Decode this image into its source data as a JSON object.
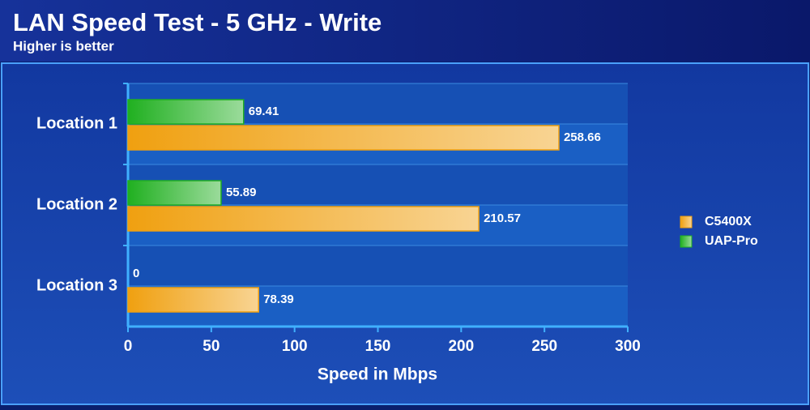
{
  "chart_data": {
    "type": "hbar",
    "title": "LAN Speed Test - 5 GHz - Write",
    "subtitle": "Higher is better",
    "x_label": "Speed in Mbps",
    "categories": [
      "Location 1",
      "Location 2",
      "Location 3"
    ],
    "series": [
      {
        "name": "C5400X",
        "color": "#f0a010",
        "values": [
          258.66,
          210.57,
          78.39
        ]
      },
      {
        "name": "UAP-Pro",
        "color": "#20b020",
        "values": [
          69.41,
          55.89,
          0
        ]
      }
    ],
    "xlim": [
      0,
      300
    ],
    "xticks": [
      0,
      50,
      100,
      150,
      200,
      250,
      300
    ],
    "legend": "right"
  }
}
